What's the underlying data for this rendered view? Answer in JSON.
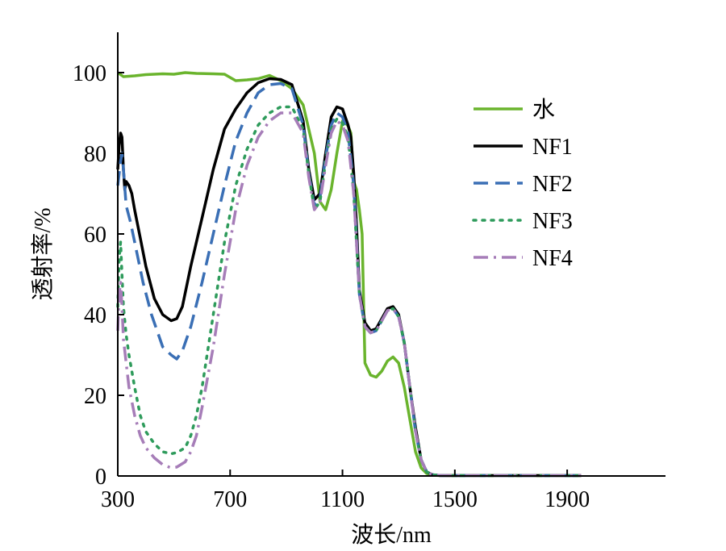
{
  "chart_data": {
    "type": "line",
    "xlabel": "波长/nm",
    "ylabel": "透射率/%",
    "xlim": [
      300,
      2250
    ],
    "ylim": [
      0,
      110
    ],
    "xticks": [
      300,
      700,
      1100,
      1500,
      1900
    ],
    "yticks": [
      0,
      20,
      40,
      60,
      80,
      100
    ],
    "grid": false,
    "legend_position": "top-right",
    "series": [
      {
        "name": "水",
        "color": "#6ab42d",
        "dash": "solid",
        "x": [
          300,
          320,
          360,
          400,
          460,
          500,
          540,
          580,
          640,
          680,
          720,
          760,
          800,
          840,
          880,
          920,
          960,
          1000,
          1020,
          1040,
          1060,
          1080,
          1100,
          1110,
          1120,
          1130,
          1140,
          1150,
          1160,
          1170,
          1180,
          1200,
          1220,
          1240,
          1260,
          1280,
          1300,
          1320,
          1340,
          1360,
          1380,
          1400,
          1420,
          1450,
          1500,
          1600,
          1700,
          1800,
          1900,
          1950
        ],
        "values": [
          100,
          99,
          99.2,
          99.5,
          99.7,
          99.6,
          100,
          99.8,
          99.7,
          99.6,
          98,
          98.2,
          98.5,
          99.3,
          98,
          96,
          92,
          80,
          68,
          66,
          71,
          80,
          88,
          87.5,
          86.8,
          85,
          73,
          71,
          66,
          60,
          28,
          25,
          24.5,
          26,
          28.5,
          29.5,
          28,
          22,
          14,
          6,
          2,
          0.6,
          0.2,
          0.1,
          0.1,
          0.1,
          0.1,
          0.1,
          0.1,
          0.1
        ]
      },
      {
        "name": "NF1",
        "color": "#000000",
        "dash": "solid",
        "x": [
          300,
          305,
          310,
          315,
          320,
          325,
          330,
          340,
          350,
          360,
          380,
          400,
          430,
          460,
          490,
          510,
          530,
          560,
          600,
          640,
          680,
          720,
          760,
          800,
          840,
          880,
          920,
          960,
          980,
          1000,
          1020,
          1040,
          1060,
          1080,
          1100,
          1110,
          1120,
          1130,
          1140,
          1150,
          1160,
          1180,
          1200,
          1220,
          1240,
          1260,
          1280,
          1300,
          1320,
          1340,
          1360,
          1380,
          1400,
          1420,
          1450,
          1500,
          1600,
          1700,
          1800,
          1900,
          1950
        ],
        "values": [
          76,
          82,
          85,
          84,
          76,
          71,
          73,
          72,
          70,
          66,
          59,
          52,
          44,
          40,
          38.5,
          39,
          42,
          52,
          64,
          76,
          86,
          91,
          95,
          97.5,
          98.5,
          98.3,
          97,
          88,
          76,
          68.5,
          70,
          80,
          89,
          91.5,
          91,
          89,
          87,
          84,
          75,
          62,
          46,
          38,
          36,
          36.5,
          39,
          41.5,
          42,
          40,
          33,
          22,
          12,
          4,
          1,
          0.3,
          0.1,
          0.1,
          0.1,
          0.1,
          0.1,
          0.1,
          0.1
        ]
      },
      {
        "name": "NF2",
        "color": "#3a6fb5",
        "dash": "dashed",
        "x": [
          300,
          310,
          315,
          320,
          330,
          345,
          360,
          390,
          420,
          460,
          490,
          510,
          530,
          560,
          600,
          640,
          680,
          720,
          760,
          800,
          840,
          880,
          920,
          960,
          980,
          1000,
          1020,
          1040,
          1060,
          1080,
          1100,
          1120,
          1140,
          1160,
          1180,
          1200,
          1220,
          1240,
          1260,
          1280,
          1300,
          1320,
          1340,
          1360,
          1380,
          1400,
          1420,
          1450,
          1500,
          1600,
          1700,
          1800,
          1900,
          1950
        ],
        "values": [
          72,
          78,
          80,
          76,
          67,
          63,
          58,
          48,
          40,
          32,
          30,
          29,
          31,
          37,
          48,
          60,
          72,
          83,
          90,
          95,
          97,
          97.3,
          96,
          87,
          75,
          67,
          69,
          79,
          87,
          90,
          89,
          85,
          72,
          45,
          37,
          35.5,
          36,
          38.5,
          41,
          41.5,
          39.5,
          33,
          22,
          11,
          4,
          1,
          0.3,
          0.1,
          0.1,
          0.1,
          0.1,
          0.1,
          0.1,
          0.1
        ]
      },
      {
        "name": "NF3",
        "color": "#2e9b5b",
        "dash": "dotted",
        "x": [
          300,
          305,
          310,
          315,
          320,
          330,
          340,
          360,
          380,
          400,
          430,
          460,
          490,
          510,
          540,
          560,
          580,
          600,
          640,
          680,
          720,
          760,
          800,
          840,
          880,
          920,
          960,
          980,
          1000,
          1020,
          1040,
          1060,
          1080,
          1100,
          1120,
          1140,
          1160,
          1180,
          1200,
          1220,
          1240,
          1260,
          1280,
          1300,
          1320,
          1340,
          1360,
          1380,
          1400,
          1420,
          1450,
          1500,
          1600,
          1700,
          1800,
          1900,
          1950
        ],
        "values": [
          42,
          54,
          58,
          50,
          42,
          35,
          30,
          22,
          15,
          11,
          8,
          6,
          5.5,
          5.8,
          7,
          10,
          15,
          22,
          40,
          58,
          72,
          81,
          87,
          90,
          91.5,
          91.5,
          86,
          75,
          66,
          68,
          78,
          86,
          88.5,
          87.5,
          84,
          70,
          45,
          37,
          35.5,
          36,
          38.5,
          41,
          41.5,
          39.5,
          33,
          22,
          11,
          4,
          1,
          0.3,
          0.1,
          0.1,
          0.1,
          0.1,
          0.1,
          0.1,
          0.1
        ]
      },
      {
        "name": "NF4",
        "color": "#a67db8",
        "dash": "dashdot",
        "x": [
          300,
          305,
          310,
          315,
          320,
          330,
          340,
          360,
          380,
          400,
          430,
          460,
          490,
          510,
          540,
          560,
          580,
          600,
          640,
          680,
          720,
          760,
          800,
          840,
          880,
          920,
          960,
          980,
          1000,
          1020,
          1040,
          1060,
          1080,
          1100,
          1120,
          1140,
          1160,
          1180,
          1200,
          1220,
          1240,
          1260,
          1280,
          1300,
          1320,
          1340,
          1360,
          1380,
          1400,
          1420,
          1450,
          1500,
          1600,
          1700,
          1800,
          1900,
          1950
        ],
        "values": [
          36,
          45,
          48,
          42,
          34,
          28,
          22,
          15,
          10,
          7,
          4.5,
          2.8,
          2,
          2.2,
          3.5,
          6,
          10,
          17,
          32,
          50,
          66,
          77,
          84,
          88,
          90,
          90,
          85,
          74,
          66,
          68,
          77,
          85,
          88,
          87,
          83,
          70,
          45,
          37,
          35.5,
          36,
          38.5,
          41,
          41.5,
          39.5,
          33,
          22,
          11,
          4,
          1,
          0.3,
          0.1,
          0.1,
          0.1,
          0.1,
          0.1,
          0.1,
          0.1
        ]
      }
    ]
  }
}
